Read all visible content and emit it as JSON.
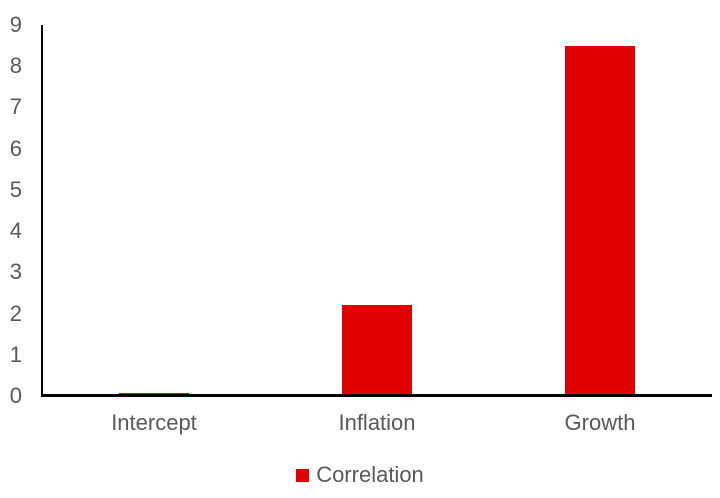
{
  "chart_data": {
    "type": "bar",
    "title": "",
    "xlabel": "",
    "ylabel": "",
    "categories": [
      "Intercept",
      "Inflation",
      "Growth"
    ],
    "series": [
      {
        "name": "Correlation",
        "color": "#e00000",
        "values": [
          0.08,
          2.2,
          8.5
        ]
      }
    ],
    "ylim": [
      0,
      9
    ],
    "ytick_step": 1,
    "ytick_labels": [
      "0",
      "1",
      "2",
      "3",
      "4",
      "5",
      "6",
      "7",
      "8",
      "9"
    ],
    "grid": false,
    "legend": {
      "position": "bottom",
      "entries": [
        {
          "label": "Correlation",
          "color": "#e00000",
          "marker": "square"
        }
      ]
    }
  },
  "colors": {
    "background": "#ffffff",
    "axis_line": "#000000",
    "tick_text": "#595959",
    "bar": "#e00000"
  }
}
